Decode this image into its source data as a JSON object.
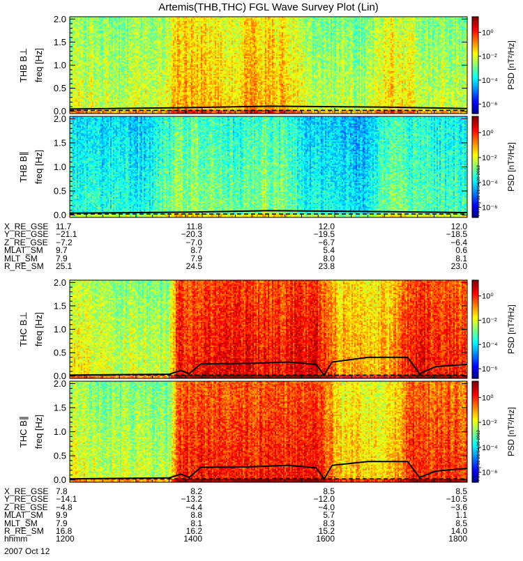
{
  "title": "Artemis(THB,THC) FGL Wave Survey Plot (Lin)",
  "stamp": "Fri Aug 31 21:54:39 2012",
  "colorbar": {
    "label": "PSD [nT²/Hz]",
    "ticks": [
      "10⁰",
      "10⁻²",
      "10⁻⁴",
      "10⁻⁶"
    ],
    "tick_exponents": [
      0,
      -2,
      -4,
      -6
    ],
    "range_log10": [
      -6.8,
      1.3
    ]
  },
  "chart_data": [
    {
      "type": "heatmap",
      "title": "",
      "ylabel": "THB B⊥ freq [Hz]",
      "ylabel_top": "THB B⊥",
      "ylabel_bottom": "freq [Hz]",
      "yticks": [
        "0.0",
        "0.5",
        "1.0",
        "1.5",
        "2.0"
      ],
      "ytick_values": [
        0,
        0.5,
        1.0,
        1.5,
        2.0
      ],
      "ylim": [
        -0.05,
        2.05
      ],
      "intensity_profile": [
        [
          0.0,
          -2.0
        ],
        [
          0.15,
          -2.2
        ],
        [
          0.24,
          -1.9
        ],
        [
          0.27,
          -1.0
        ],
        [
          0.3,
          -0.9
        ],
        [
          0.4,
          -1.4
        ],
        [
          0.45,
          -0.9
        ],
        [
          0.55,
          -1.2
        ],
        [
          0.6,
          -2.2
        ],
        [
          0.75,
          -2.3
        ],
        [
          0.8,
          -1.3
        ],
        [
          0.85,
          -1.8
        ],
        [
          0.9,
          -2.2
        ],
        [
          1.0,
          -2.1
        ]
      ],
      "cyclotron_curve": [
        [
          0.0,
          0.05
        ],
        [
          0.3,
          0.08
        ],
        [
          0.5,
          0.11
        ],
        [
          0.8,
          0.09
        ],
        [
          1.0,
          0.06
        ]
      ]
    },
    {
      "type": "heatmap",
      "title": "",
      "ylabel": "THB B∥ freq [Hz]",
      "ylabel_top": "THB B∥",
      "ylabel_bottom": "freq [Hz]",
      "yticks": [
        "0.0",
        "0.5",
        "1.0",
        "1.5",
        "2.0"
      ],
      "ytick_values": [
        0,
        0.5,
        1.0,
        1.5,
        2.0
      ],
      "ylim": [
        -0.05,
        2.05
      ],
      "intensity_profile": [
        [
          0.0,
          -3.3
        ],
        [
          0.2,
          -3.5
        ],
        [
          0.27,
          -2.4
        ],
        [
          0.35,
          -2.6
        ],
        [
          0.42,
          -2.9
        ],
        [
          0.48,
          -2.5
        ],
        [
          0.55,
          -2.7
        ],
        [
          0.6,
          -3.6
        ],
        [
          0.75,
          -3.9
        ],
        [
          0.8,
          -2.6
        ],
        [
          0.9,
          -3.1
        ],
        [
          1.0,
          -3.3
        ]
      ],
      "cyclotron_curve": [
        [
          0.0,
          0.04
        ],
        [
          0.3,
          0.06
        ],
        [
          0.5,
          0.09
        ],
        [
          0.8,
          0.07
        ],
        [
          1.0,
          0.05
        ]
      ]
    },
    {
      "type": "heatmap",
      "title": "",
      "ylabel": "THC B⊥ freq [Hz]",
      "ylabel_top": "THC B⊥",
      "ylabel_bottom": "freq [Hz]",
      "yticks": [
        "0.0",
        "0.5",
        "1.0",
        "1.5",
        "2.0"
      ],
      "ytick_values": [
        0,
        0.5,
        1.0,
        1.5,
        2.0
      ],
      "ylim": [
        -0.05,
        2.05
      ],
      "intensity_profile": [
        [
          0.0,
          -1.6
        ],
        [
          0.1,
          -2.0
        ],
        [
          0.25,
          -2.2
        ],
        [
          0.27,
          0.2
        ],
        [
          0.4,
          0.4
        ],
        [
          0.55,
          0.3
        ],
        [
          0.62,
          0.5
        ],
        [
          0.68,
          -0.9
        ],
        [
          0.8,
          -1.1
        ],
        [
          0.86,
          0.4
        ],
        [
          0.95,
          0.2
        ],
        [
          1.0,
          0.1
        ]
      ],
      "cyclotron_curve": [
        [
          0.0,
          0.02
        ],
        [
          0.25,
          0.04
        ],
        [
          0.28,
          0.12
        ],
        [
          0.3,
          0.05
        ],
        [
          0.33,
          0.26
        ],
        [
          0.45,
          0.27
        ],
        [
          0.55,
          0.3
        ],
        [
          0.62,
          0.25
        ],
        [
          0.64,
          0.02
        ],
        [
          0.66,
          0.3
        ],
        [
          0.75,
          0.4
        ],
        [
          0.85,
          0.4
        ],
        [
          0.88,
          0.05
        ],
        [
          0.92,
          0.2
        ],
        [
          1.0,
          0.25
        ]
      ]
    },
    {
      "type": "heatmap",
      "title": "",
      "ylabel": "THC B∥ freq [Hz]",
      "ylabel_top": "THC B∥",
      "ylabel_bottom": "freq [Hz]",
      "yticks": [
        "0.0",
        "0.5",
        "1.0",
        "1.5",
        "2.0"
      ],
      "ytick_values": [
        0,
        0.5,
        1.0,
        1.5,
        2.0
      ],
      "ylim": [
        -0.05,
        2.05
      ],
      "intensity_profile": [
        [
          0.0,
          -1.8
        ],
        [
          0.1,
          -2.1
        ],
        [
          0.25,
          -2.3
        ],
        [
          0.27,
          0.0
        ],
        [
          0.4,
          0.2
        ],
        [
          0.55,
          0.1
        ],
        [
          0.62,
          0.3
        ],
        [
          0.68,
          -1.2
        ],
        [
          0.8,
          -1.4
        ],
        [
          0.86,
          0.2
        ],
        [
          0.95,
          0.0
        ],
        [
          1.0,
          -0.1
        ]
      ],
      "cyclotron_curve": [
        [
          0.0,
          0.02
        ],
        [
          0.25,
          0.04
        ],
        [
          0.28,
          0.12
        ],
        [
          0.3,
          0.05
        ],
        [
          0.33,
          0.26
        ],
        [
          0.45,
          0.27
        ],
        [
          0.55,
          0.3
        ],
        [
          0.62,
          0.25
        ],
        [
          0.64,
          0.02
        ],
        [
          0.66,
          0.3
        ],
        [
          0.75,
          0.38
        ],
        [
          0.85,
          0.38
        ],
        [
          0.88,
          0.05
        ],
        [
          0.92,
          0.18
        ],
        [
          1.0,
          0.24
        ]
      ]
    }
  ],
  "ephem_thb": [
    {
      "label": "X_RE_GSE",
      "values": [
        "11.7",
        "11.8",
        "12.0",
        "12.0"
      ]
    },
    {
      "label": "Y_RE_GSE",
      "values": [
        "−21.1",
        "−20.3",
        "−19.5",
        "−18.5"
      ]
    },
    {
      "label": "Z_RE_GSE",
      "values": [
        "−7.2",
        "−7.0",
        "−6.7",
        "−6.4"
      ]
    },
    {
      "label": "MLAT_SM",
      "values": [
        "9.7",
        "8.7",
        "5.4",
        "0.6"
      ]
    },
    {
      "label": "MLT_SM",
      "values": [
        "7.9",
        "7.9",
        "8.0",
        "8.1"
      ]
    },
    {
      "label": "R_RE_SM",
      "values": [
        "25.1",
        "24.5",
        "23.8",
        "23.0"
      ]
    }
  ],
  "ephem_thc": [
    {
      "label": "X_RE_GSE",
      "values": [
        "7.8",
        "8.2",
        "8.5",
        "8.5"
      ]
    },
    {
      "label": "Y_RE_GSE",
      "values": [
        "−14.1",
        "−13.2",
        "−12.0",
        "−10.5"
      ]
    },
    {
      "label": "Z_RE_GSE",
      "values": [
        "−4.8",
        "−4.4",
        "−4.0",
        "−3.6"
      ]
    },
    {
      "label": "MLAT_SM",
      "values": [
        "9.9",
        "8.8",
        "5.7",
        "1.1"
      ]
    },
    {
      "label": "MLT_SM",
      "values": [
        "7.9",
        "8.1",
        "8.3",
        "8.5"
      ]
    },
    {
      "label": "R_RE_SM",
      "values": [
        "16.8",
        "16.2",
        "15.2",
        "14.0"
      ]
    },
    {
      "label": "hhmm",
      "values": [
        "1200",
        "1400",
        "1600",
        "1800"
      ]
    }
  ],
  "date": "2007 Oct 12"
}
